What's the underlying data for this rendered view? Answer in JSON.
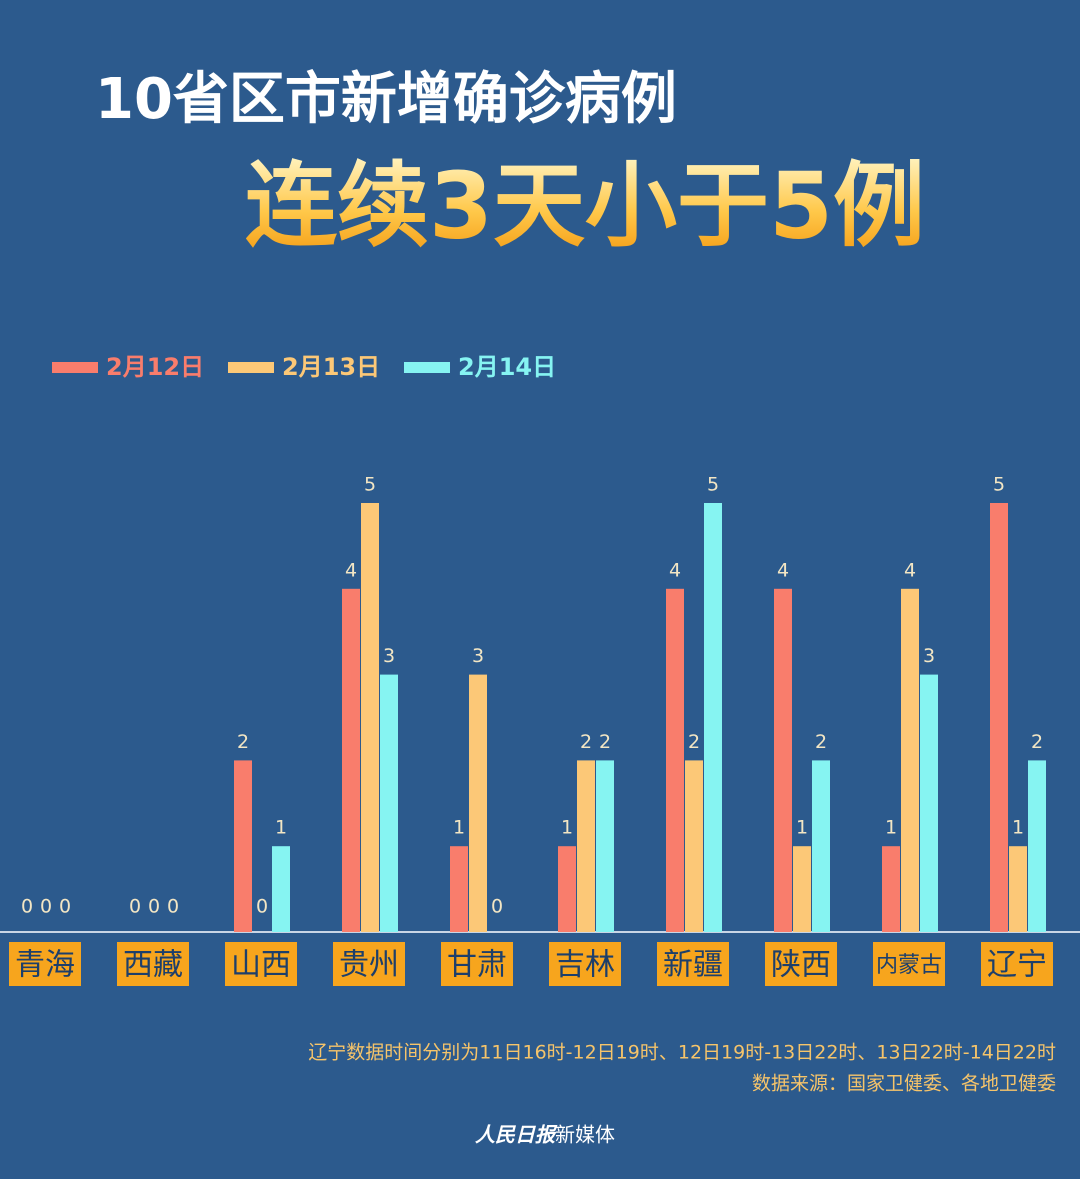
{
  "chart_data": {
    "type": "bar",
    "title": "10省区市新增确诊病例",
    "subtitle": "连续3天小于5例",
    "categories": [
      "青海",
      "西藏",
      "山西",
      "贵州",
      "甘肃",
      "吉林",
      "新疆",
      "陕西",
      "内蒙古",
      "辽宁"
    ],
    "series": [
      {
        "name": "2月12日",
        "color": "#f97d6c",
        "values": [
          0,
          0,
          2,
          4,
          1,
          1,
          4,
          4,
          1,
          5
        ]
      },
      {
        "name": "2月13日",
        "color": "#fcc877",
        "values": [
          0,
          0,
          0,
          5,
          3,
          2,
          2,
          1,
          4,
          1
        ]
      },
      {
        "name": "2月14日",
        "color": "#86f4f2",
        "values": [
          0,
          0,
          1,
          3,
          0,
          2,
          5,
          2,
          3,
          2
        ]
      }
    ],
    "ylim": [
      0,
      5
    ],
    "legend": "top-left",
    "notes": [
      "辽宁数据时间分别为11日16时-12日19时、12日19时-13日22时、13日22时-14日22时",
      "数据来源：国家卫健委、各地卫健委"
    ],
    "brand": "人民日报",
    "brand_suffix": "新媒体"
  }
}
